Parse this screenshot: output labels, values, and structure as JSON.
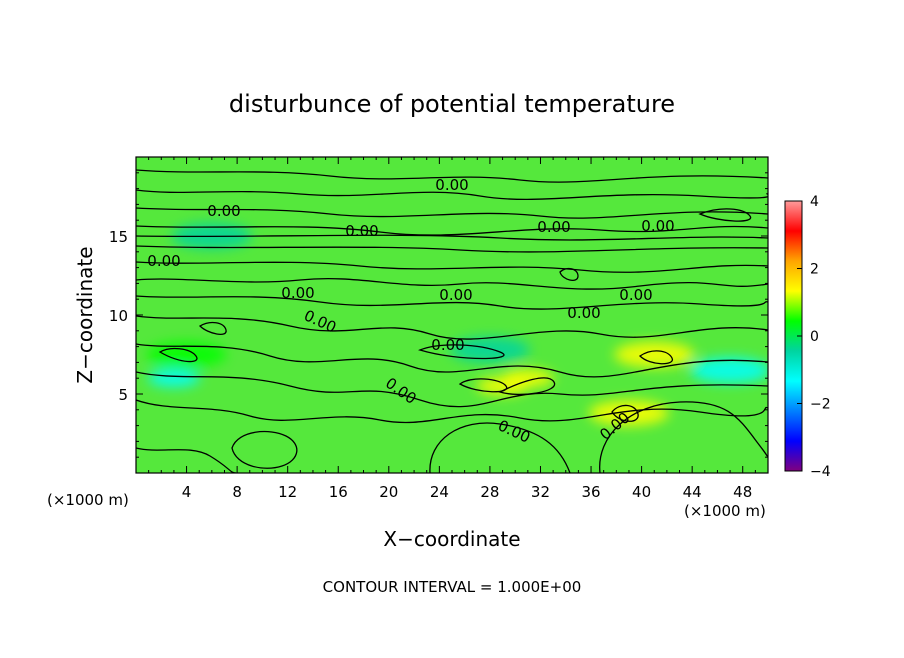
{
  "chart_data": {
    "type": "heatmap",
    "title": "disturbunce of potential temperature",
    "xlabel": "X−coordinate",
    "ylabel": "Z−coordinate",
    "x_unit_left": "(×1000 m)",
    "x_unit_right": "(×1000 m)",
    "xlim": [
      0,
      50
    ],
    "ylim": [
      0,
      20
    ],
    "x_ticks": [
      4,
      8,
      12,
      16,
      20,
      24,
      28,
      32,
      36,
      40,
      44,
      48
    ],
    "y_ticks": [
      5,
      10,
      15
    ],
    "colorbar": {
      "range": [
        -4,
        4
      ],
      "ticks": [
        4,
        2,
        0,
        -2,
        -4
      ],
      "tick_labels": [
        "4",
        "2",
        "0",
        "−2",
        "−4"
      ],
      "colors": [
        "#ff9b9b",
        "#ff0000",
        "#ffa500",
        "#ffff00",
        "#00ff00",
        "#00d4a0",
        "#00ffff",
        "#0080ff",
        "#0000ff",
        "#800080"
      ]
    },
    "contour_interval_text": "CONTOUR INTERVAL = 1.000E+00",
    "contour_labels": [
      "0.00",
      "0.00",
      "0.00",
      "0.00",
      "0.00",
      "0.00",
      "0.00",
      "0.00",
      "0.00",
      "0.00",
      "0.00",
      "0.00",
      "0.00",
      "0.00",
      "0.00"
    ],
    "field_features": [
      {
        "value": -1.2,
        "x": 3,
        "z": 6
      },
      {
        "value": -1.0,
        "x": 47,
        "z": 6.5
      },
      {
        "value": -0.8,
        "x": 28,
        "z": 7.8
      },
      {
        "value": 1.4,
        "x": 29,
        "z": 5.5
      },
      {
        "value": 1.2,
        "x": 31,
        "z": 6
      },
      {
        "value": 1.0,
        "x": 41,
        "z": 7.5
      },
      {
        "value": 1.0,
        "x": 39,
        "z": 3.8
      },
      {
        "value": 0.8,
        "x": 4,
        "z": 7.5
      },
      {
        "value": -0.6,
        "x": 6,
        "z": 15
      }
    ]
  }
}
